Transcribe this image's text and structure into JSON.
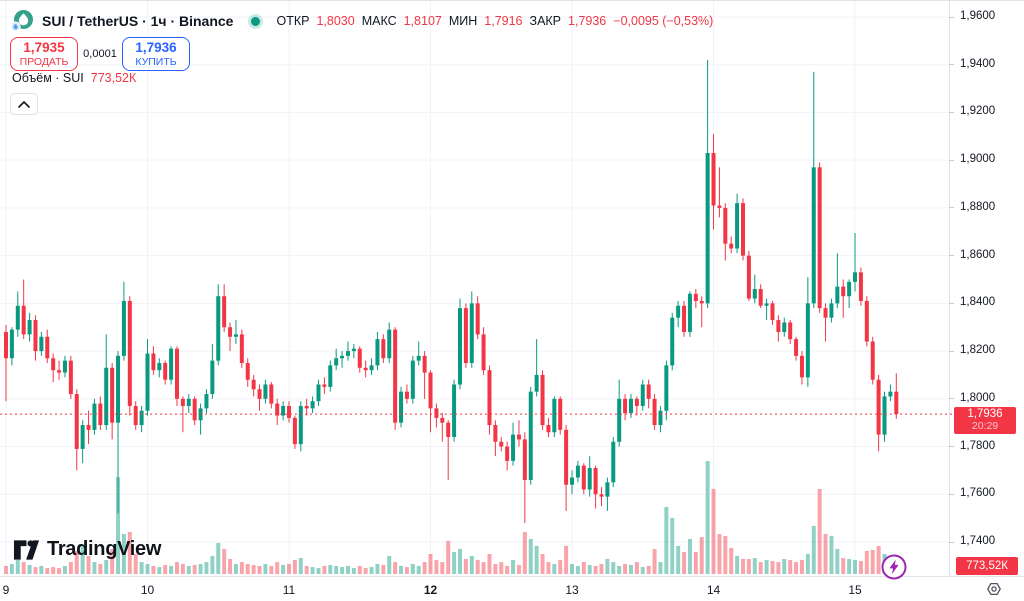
{
  "header": {
    "symbol_title": "SUI / TetherUS · 1ч · Binance",
    "symbol_logo_icon": "sui-drop-logo",
    "market_status_icon": "teal-dot",
    "ohlc": {
      "open_label": "ОТКР",
      "open_value": "1,8030",
      "high_label": "МАКС",
      "high_value": "1,8107",
      "low_label": "МИН",
      "low_value": "1,7916",
      "close_label": "ЗАКР",
      "close_value": "1,7936",
      "change_value": "−0,0095 (−0,53%)"
    },
    "sell_button": {
      "price": "1,7935",
      "label": "ПРОДАТЬ"
    },
    "spread": "0,0001",
    "buy_button": {
      "price": "1,7936",
      "label": "КУПИТЬ"
    },
    "indicator_row": {
      "label": "Объём · SUI",
      "value": "773,52К"
    },
    "collapse_icon": "chevron-up"
  },
  "price_axis": {
    "ticks": [
      "1,9600",
      "1,9400",
      "1,9200",
      "1,9000",
      "1,8800",
      "1,8600",
      "1,8400",
      "1,8200",
      "1,8000",
      "1,7800",
      "1,7600",
      "1,7400"
    ],
    "tick_values": [
      1.96,
      1.94,
      1.92,
      1.9,
      1.88,
      1.86,
      1.84,
      1.82,
      1.8,
      1.78,
      1.76,
      1.74
    ],
    "last_price_label": "1,7936",
    "countdown": "20:29",
    "volume_label": "773,52К",
    "settings_icon": "gear"
  },
  "time_axis": {
    "labels": [
      "9",
      "10",
      "11",
      "12",
      "13",
      "14",
      "15"
    ],
    "bold_label": "12"
  },
  "watermark": {
    "brand": "TradingView",
    "logo_icon": "tradingview-mark"
  },
  "flash_button_icon": "lightning",
  "colors": {
    "up": "#089981",
    "down": "#f23645",
    "buy_blue": "#2962ff",
    "grid": "#f0f3fa",
    "text": "#131722",
    "axis_border": "#e0e3eb",
    "flash_purple": "#9c27b0",
    "volume_up": "rgba(8,153,129,0.45)",
    "volume_down": "rgba(242,54,69,0.45)"
  },
  "chart_data": {
    "type": "candlestick_with_volume",
    "symbol": "SUI/TetherUS",
    "interval": "1ч",
    "exchange": "Binance",
    "title": "SUI / TetherUS · 1ч · Binance",
    "legend": "Объём · SUI",
    "price_axis_range": [
      1.733,
      1.967
    ],
    "visible_days": [
      "9",
      "10",
      "11",
      "12",
      "13",
      "14",
      "15"
    ],
    "candles_per_day": 24,
    "last_close": 1.7936,
    "last_candle": {
      "open": 1.803,
      "high": 1.8107,
      "low": 1.7916,
      "close": 1.7936
    },
    "grid": true,
    "candles": [
      [
        1.828,
        1.831,
        1.799,
        1.817
      ],
      [
        1.817,
        1.83,
        1.814,
        1.829
      ],
      [
        1.829,
        1.845,
        1.826,
        1.839
      ],
      [
        1.839,
        1.85,
        1.825,
        1.827
      ],
      [
        1.827,
        1.836,
        1.824,
        1.833
      ],
      [
        1.833,
        1.835,
        1.816,
        1.82
      ],
      [
        1.82,
        1.828,
        1.818,
        1.826
      ],
      [
        1.826,
        1.829,
        1.815,
        1.817
      ],
      [
        1.817,
        1.819,
        1.807,
        1.812
      ],
      [
        1.812,
        1.816,
        1.808,
        1.811
      ],
      [
        1.811,
        1.818,
        1.809,
        1.816
      ],
      [
        1.816,
        1.818,
        1.8,
        1.802
      ],
      [
        1.802,
        1.804,
        1.77,
        1.779
      ],
      [
        1.779,
        1.791,
        1.773,
        1.789
      ],
      [
        1.789,
        1.795,
        1.781,
        1.787
      ],
      [
        1.787,
        1.8,
        1.785,
        1.798
      ],
      [
        1.798,
        1.801,
        1.787,
        1.789
      ],
      [
        1.789,
        1.827,
        1.787,
        1.813
      ],
      [
        1.813,
        1.815,
        1.783,
        1.79
      ],
      [
        1.79,
        1.82,
        1.752,
        1.818
      ],
      [
        1.818,
        1.849,
        1.816,
        1.841
      ],
      [
        1.841,
        1.843,
        1.793,
        1.797
      ],
      [
        1.797,
        1.799,
        1.787,
        1.789
      ],
      [
        1.789,
        1.797,
        1.786,
        1.795
      ],
      [
        1.795,
        1.825,
        1.793,
        1.819
      ],
      [
        1.819,
        1.822,
        1.81,
        1.812
      ],
      [
        1.812,
        1.817,
        1.809,
        1.815
      ],
      [
        1.815,
        1.816,
        1.806,
        1.808
      ],
      [
        1.808,
        1.822,
        1.806,
        1.821
      ],
      [
        1.821,
        1.822,
        1.797,
        1.8
      ],
      [
        1.8,
        1.801,
        1.786,
        1.797
      ],
      [
        1.797,
        1.802,
        1.794,
        1.8
      ],
      [
        1.8,
        1.801,
        1.789,
        1.791
      ],
      [
        1.791,
        1.798,
        1.785,
        1.796
      ],
      [
        1.796,
        1.804,
        1.794,
        1.802
      ],
      [
        1.802,
        1.823,
        1.8,
        1.816
      ],
      [
        1.816,
        1.848,
        1.814,
        1.843
      ],
      [
        1.843,
        1.848,
        1.828,
        1.83
      ],
      [
        1.83,
        1.832,
        1.82,
        1.826
      ],
      [
        1.826,
        1.833,
        1.823,
        1.827
      ],
      [
        1.827,
        1.829,
        1.813,
        1.815
      ],
      [
        1.815,
        1.817,
        1.805,
        1.808
      ],
      [
        1.808,
        1.81,
        1.801,
        1.804
      ],
      [
        1.804,
        1.806,
        1.795,
        1.8
      ],
      [
        1.8,
        1.808,
        1.798,
        1.806
      ],
      [
        1.806,
        1.807,
        1.796,
        1.798
      ],
      [
        1.798,
        1.8,
        1.789,
        1.793
      ],
      [
        1.793,
        1.799,
        1.791,
        1.797
      ],
      [
        1.797,
        1.799,
        1.79,
        1.792
      ],
      [
        1.792,
        1.793,
        1.779,
        1.781
      ],
      [
        1.781,
        1.799,
        1.778,
        1.797
      ],
      [
        1.797,
        1.8,
        1.793,
        1.796
      ],
      [
        1.796,
        1.801,
        1.794,
        1.799
      ],
      [
        1.799,
        1.808,
        1.797,
        1.806
      ],
      [
        1.806,
        1.809,
        1.802,
        1.805
      ],
      [
        1.805,
        1.816,
        1.803,
        1.814
      ],
      [
        1.814,
        1.821,
        1.812,
        1.817
      ],
      [
        1.817,
        1.82,
        1.813,
        1.818
      ],
      [
        1.818,
        1.824,
        1.816,
        1.82
      ],
      [
        1.82,
        1.823,
        1.817,
        1.821
      ],
      [
        1.821,
        1.822,
        1.811,
        1.813
      ],
      [
        1.813,
        1.816,
        1.809,
        1.812
      ],
      [
        1.812,
        1.817,
        1.81,
        1.814
      ],
      [
        1.814,
        1.828,
        1.812,
        1.825
      ],
      [
        1.825,
        1.827,
        1.815,
        1.817
      ],
      [
        1.817,
        1.832,
        1.815,
        1.829
      ],
      [
        1.829,
        1.83,
        1.787,
        1.79
      ],
      [
        1.79,
        1.805,
        1.788,
        1.803
      ],
      [
        1.803,
        1.806,
        1.798,
        1.8
      ],
      [
        1.8,
        1.818,
        1.798,
        1.816
      ],
      [
        1.816,
        1.824,
        1.814,
        1.818
      ],
      [
        1.818,
        1.82,
        1.8,
        1.811
      ],
      [
        1.811,
        1.812,
        1.786,
        1.796
      ],
      [
        1.796,
        1.798,
        1.788,
        1.792
      ],
      [
        1.792,
        1.794,
        1.782,
        1.79
      ],
      [
        1.79,
        1.791,
        1.766,
        1.784
      ],
      [
        1.784,
        1.808,
        1.782,
        1.806
      ],
      [
        1.806,
        1.842,
        1.804,
        1.838
      ],
      [
        1.838,
        1.84,
        1.813,
        1.815
      ],
      [
        1.815,
        1.845,
        1.813,
        1.84
      ],
      [
        1.84,
        1.843,
        1.825,
        1.827
      ],
      [
        1.827,
        1.83,
        1.81,
        1.812
      ],
      [
        1.812,
        1.814,
        1.785,
        1.789
      ],
      [
        1.789,
        1.791,
        1.776,
        1.782
      ],
      [
        1.782,
        1.784,
        1.778,
        1.78
      ],
      [
        1.78,
        1.782,
        1.77,
        1.774
      ],
      [
        1.774,
        1.79,
        1.772,
        1.785
      ],
      [
        1.785,
        1.791,
        1.78,
        1.783
      ],
      [
        1.783,
        1.786,
        1.748,
        1.766
      ],
      [
        1.766,
        1.805,
        1.764,
        1.803
      ],
      [
        1.803,
        1.825,
        1.801,
        1.81
      ],
      [
        1.81,
        1.812,
        1.787,
        1.789
      ],
      [
        1.789,
        1.792,
        1.784,
        1.786
      ],
      [
        1.786,
        1.801,
        1.784,
        1.8
      ],
      [
        1.8,
        1.801,
        1.785,
        1.787
      ],
      [
        1.787,
        1.789,
        1.753,
        1.764
      ],
      [
        1.764,
        1.77,
        1.76,
        1.767
      ],
      [
        1.767,
        1.774,
        1.765,
        1.772
      ],
      [
        1.772,
        1.773,
        1.76,
        1.762
      ],
      [
        1.762,
        1.776,
        1.759,
        1.771
      ],
      [
        1.771,
        1.772,
        1.754,
        1.76
      ],
      [
        1.76,
        1.763,
        1.755,
        1.759
      ],
      [
        1.759,
        1.767,
        1.753,
        1.765
      ],
      [
        1.765,
        1.784,
        1.763,
        1.782
      ],
      [
        1.782,
        1.808,
        1.78,
        1.8
      ],
      [
        1.8,
        1.802,
        1.791,
        1.794
      ],
      [
        1.794,
        1.802,
        1.792,
        1.8
      ],
      [
        1.8,
        1.801,
        1.793,
        1.797
      ],
      [
        1.797,
        1.808,
        1.795,
        1.806
      ],
      [
        1.806,
        1.808,
        1.796,
        1.8
      ],
      [
        1.8,
        1.802,
        1.787,
        1.789
      ],
      [
        1.789,
        1.797,
        1.786,
        1.795
      ],
      [
        1.795,
        1.816,
        1.791,
        1.814
      ],
      [
        1.814,
        1.836,
        1.812,
        1.834
      ],
      [
        1.834,
        1.841,
        1.83,
        1.839
      ],
      [
        1.839,
        1.841,
        1.826,
        1.828
      ],
      [
        1.828,
        1.845,
        1.826,
        1.844
      ],
      [
        1.844,
        1.846,
        1.838,
        1.841
      ],
      [
        1.841,
        1.843,
        1.83,
        1.84
      ],
      [
        1.84,
        1.942,
        1.838,
        1.903
      ],
      [
        1.903,
        1.911,
        1.871,
        1.881
      ],
      [
        1.881,
        1.897,
        1.876,
        1.88
      ],
      [
        1.88,
        1.882,
        1.858,
        1.865
      ],
      [
        1.865,
        1.868,
        1.861,
        1.863
      ],
      [
        1.863,
        1.886,
        1.861,
        1.882
      ],
      [
        1.882,
        1.884,
        1.858,
        1.86
      ],
      [
        1.86,
        1.862,
        1.841,
        1.842
      ],
      [
        1.842,
        1.852,
        1.84,
        1.846
      ],
      [
        1.846,
        1.848,
        1.838,
        1.839
      ],
      [
        1.839,
        1.842,
        1.833,
        1.84
      ],
      [
        1.84,
        1.841,
        1.831,
        1.833
      ],
      [
        1.833,
        1.835,
        1.824,
        1.828
      ],
      [
        1.828,
        1.834,
        1.826,
        1.832
      ],
      [
        1.832,
        1.833,
        1.823,
        1.825
      ],
      [
        1.825,
        1.826,
        1.816,
        1.818
      ],
      [
        1.818,
        1.82,
        1.806,
        1.809
      ],
      [
        1.809,
        1.851,
        1.805,
        1.84
      ],
      [
        1.84,
        1.937,
        1.838,
        1.897
      ],
      [
        1.897,
        1.899,
        1.836,
        1.838
      ],
      [
        1.838,
        1.84,
        1.824,
        1.834
      ],
      [
        1.834,
        1.842,
        1.832,
        1.84
      ],
      [
        1.84,
        1.861,
        1.838,
        1.847
      ],
      [
        1.847,
        1.85,
        1.834,
        1.843
      ],
      [
        1.843,
        1.85,
        1.838,
        1.849
      ],
      [
        1.849,
        1.8695,
        1.845,
        1.853
      ],
      [
        1.853,
        1.855,
        1.839,
        1.841
      ],
      [
        1.841,
        1.843,
        1.822,
        1.824
      ],
      [
        1.824,
        1.826,
        1.806,
        1.808
      ],
      [
        1.808,
        1.81,
        1.778,
        1.785
      ],
      [
        1.785,
        1.803,
        1.782,
        1.801
      ],
      [
        1.801,
        1.806,
        1.799,
        1.803
      ],
      [
        1.803,
        1.8107,
        1.7916,
        1.7936
      ]
    ],
    "volumes_k": [
      500,
      620,
      870,
      740,
      560,
      430,
      500,
      370,
      430,
      370,
      500,
      740,
      1430,
      1860,
      1120,
      740,
      620,
      870,
      1550,
      6000,
      2480,
      2600,
      1240,
      740,
      620,
      500,
      430,
      560,
      500,
      740,
      620,
      500,
      560,
      620,
      740,
      1120,
      1920,
      1550,
      930,
      620,
      740,
      620,
      560,
      500,
      620,
      500,
      740,
      560,
      620,
      870,
      990,
      500,
      430,
      370,
      500,
      560,
      500,
      430,
      500,
      370,
      500,
      370,
      430,
      620,
      560,
      1120,
      740,
      500,
      430,
      620,
      500,
      740,
      1240,
      870,
      740,
      2050,
      1360,
      1550,
      930,
      1120,
      870,
      740,
      1240,
      620,
      740,
      500,
      870,
      560,
      2600,
      2170,
      1740,
      1240,
      740,
      620,
      870,
      1740,
      620,
      500,
      740,
      560,
      500,
      620,
      930,
      740,
      500,
      620,
      560,
      740,
      430,
      500,
      1550,
      740,
      4150,
      3470,
      1740,
      1360,
      2170,
      1360,
      2290,
      7000,
      5270,
      2480,
      2360,
      1610,
      1120,
      930,
      930,
      990,
      740,
      870,
      810,
      740,
      930,
      870,
      740,
      870,
      1240,
      2980,
      5270,
      2480,
      2360,
      1550,
      990,
      930,
      870,
      810,
      1430,
      1490,
      1740,
      1240,
      930,
      773.52
    ],
    "max_volume_k": 7000
  }
}
